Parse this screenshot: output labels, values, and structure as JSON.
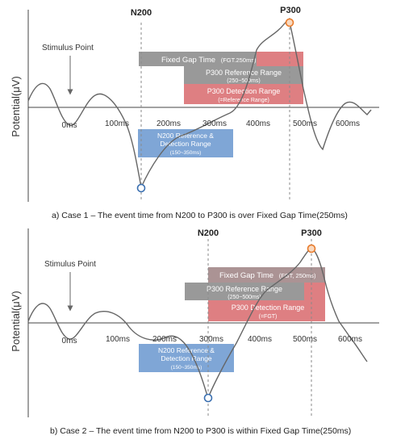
{
  "colors": {
    "curve": "#666666",
    "axis": "#444444",
    "n200_marker": "#3a6fb0",
    "p300_marker": "#e87a2a",
    "gray_box": "#999999",
    "red_box": "#de7f82",
    "blue_box": "#7fa6d6",
    "guide": "#8a8a8a"
  },
  "y_axis_label": "Potential(μV)",
  "x_ticks_ms": [
    0,
    100,
    200,
    300,
    400,
    500,
    600
  ],
  "panels": [
    {
      "id": "case1",
      "n200_label": "N200",
      "p300_label": "P300",
      "stimulus_label": "Stimulus Point",
      "x_tick_labels": [
        "0ms",
        "100ms",
        "200ms",
        "300ms",
        "400ms",
        "500ms",
        "600ms"
      ],
      "n200_ms": 150,
      "p300_ms": 470,
      "fgt": {
        "text": "Fixed  Gap  Time",
        "sub": "(FGT.250ms)"
      },
      "p300_ref": {
        "title": "P300 Reference Range",
        "sub": "(250~500ms)"
      },
      "p300_det": {
        "title": "P300 Detection Range",
        "sub": "(=Reference  Range)"
      },
      "n200_ref": {
        "line1": "N200 Reference &",
        "line2": "Detection Range",
        "sub": "(150~350ms)"
      },
      "caption": "a) Case 1 – The event time from N200 to P300 is over Fixed Gap Time(250ms)"
    },
    {
      "id": "case2",
      "n200_label": "N200",
      "p300_label": "P300",
      "stimulus_label": "Stimulus Point",
      "x_tick_labels": [
        "0ms",
        "100ms",
        "200ms",
        "300ms",
        "400ms",
        "500ms",
        "600ms"
      ],
      "n200_ms": 300,
      "p300_ms": 520,
      "fgt": {
        "text": "Fixed  Gap  Time",
        "sub": "(FGT, 250ms)"
      },
      "p300_ref": {
        "title": "P300 Reference Range",
        "sub": "(250~500ms)"
      },
      "p300_det": {
        "title": "P300 Detection Range",
        "sub": "(=FGT)"
      },
      "n200_ref": {
        "line1": "N200 Reference &",
        "line2": "Detection Range",
        "sub": "(150~350ms)"
      },
      "caption": "b) Case 2 – The event time from N200 to P300 is within Fixed Gap Time(250ms)"
    }
  ]
}
